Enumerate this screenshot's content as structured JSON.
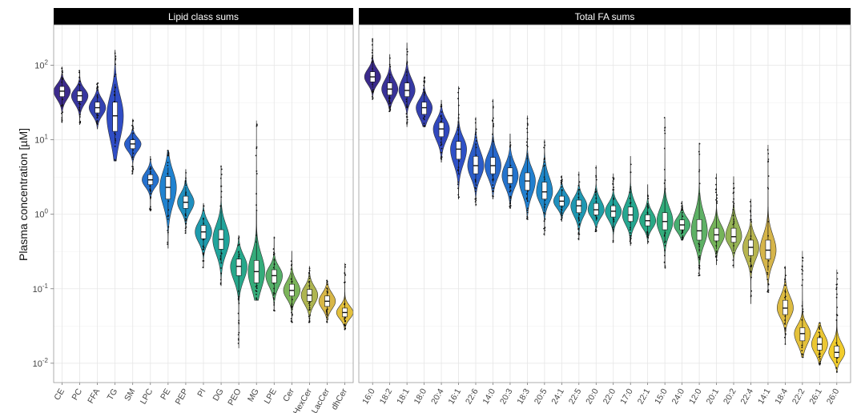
{
  "chart_data": {
    "type": "violin",
    "ylabel": "Plasma concentration [µM]",
    "yscale": "log10",
    "ylim": [
      0.0055,
      350
    ],
    "yticks": [
      0.01,
      0.1,
      1,
      10,
      100
    ],
    "ytick_labels": [
      {
        "base": "10",
        "exp": "-2"
      },
      {
        "base": "10",
        "exp": "-1"
      },
      {
        "base": "10",
        "exp": "0"
      },
      {
        "base": "10",
        "exp": "1"
      },
      {
        "base": "10",
        "exp": "2"
      }
    ],
    "grid": true,
    "legend": "none",
    "panels": [
      {
        "title": "Lipid class sums",
        "categories": [
          "CE",
          "PC",
          "FFA",
          "TG",
          "SM",
          "LPC",
          "PE",
          "PEP",
          "PI",
          "DG",
          "PEO",
          "MG",
          "LPE",
          "Cer",
          "HexCer",
          "LacCer",
          "dhCer"
        ],
        "medians": [
          45,
          39,
          27,
          21,
          8.8,
          2.9,
          2.3,
          1.45,
          0.58,
          0.46,
          0.2,
          0.17,
          0.15,
          0.095,
          0.082,
          0.068,
          0.048
        ],
        "q1": [
          38,
          33,
          23,
          13,
          7.6,
          2.5,
          1.6,
          1.2,
          0.47,
          0.34,
          0.15,
          0.12,
          0.12,
          0.08,
          0.068,
          0.058,
          0.042
        ],
        "q3": [
          52,
          45,
          32,
          32,
          10,
          3.4,
          3.2,
          1.75,
          0.71,
          0.62,
          0.25,
          0.24,
          0.18,
          0.115,
          0.098,
          0.08,
          0.055
        ],
        "min": [
          17,
          16,
          14,
          5.2,
          3.5,
          1.1,
          0.35,
          0.55,
          0.19,
          0.11,
          0.016,
          0.07,
          0.05,
          0.035,
          0.035,
          0.035,
          0.028
        ],
        "max": [
          95,
          85,
          58,
          160,
          19,
          6,
          7.2,
          4,
          1.4,
          4.5,
          0.52,
          18,
          0.5,
          0.32,
          0.2,
          0.13,
          0.22
        ]
      },
      {
        "title": "Total FA sums",
        "categories": [
          "16:0",
          "18:2",
          "18:1",
          "18:0",
          "20:4",
          "16:1",
          "22:6",
          "14:0",
          "20:3",
          "18:3",
          "20:5",
          "24:1",
          "22:5",
          "20:0",
          "22:0",
          "17:0",
          "22:1",
          "15:0",
          "24:0",
          "12:0",
          "20:1",
          "20:2",
          "22:4",
          "14:1",
          "18:4",
          "22:2",
          "26:1",
          "26:0"
        ],
        "medians": [
          70,
          48,
          46,
          27,
          14,
          7.5,
          4.5,
          4.5,
          3.3,
          2.8,
          2.0,
          1.5,
          1.3,
          1.15,
          1.1,
          0.98,
          0.82,
          0.8,
          0.72,
          0.6,
          0.53,
          0.5,
          0.36,
          0.33,
          0.055,
          0.025,
          0.018,
          0.014
        ],
        "q1": [
          60,
          40,
          38,
          22,
          11,
          5.5,
          3.5,
          3.5,
          2.6,
          2.1,
          1.6,
          1.3,
          1.05,
          0.98,
          0.92,
          0.8,
          0.7,
          0.62,
          0.62,
          0.45,
          0.44,
          0.42,
          0.28,
          0.25,
          0.045,
          0.02,
          0.015,
          0.012
        ],
        "q3": [
          82,
          58,
          58,
          32,
          17,
          9.5,
          6,
          5.8,
          4.2,
          3.6,
          2.7,
          1.75,
          1.55,
          1.4,
          1.3,
          1.25,
          0.98,
          1.05,
          0.84,
          0.85,
          0.65,
          0.65,
          0.45,
          0.45,
          0.07,
          0.03,
          0.022,
          0.017
        ],
        "min": [
          35,
          24,
          15,
          15,
          5,
          1.6,
          1.3,
          1.6,
          1.2,
          0.85,
          0.52,
          0.8,
          0.45,
          0.58,
          0.42,
          0.38,
          0.4,
          0.19,
          0.45,
          0.15,
          0.21,
          0.19,
          0.063,
          0.09,
          0.018,
          0.012,
          0.0095,
          0.0075
        ],
        "max": [
          230,
          140,
          200,
          70,
          34,
          52,
          20,
          35,
          12,
          21,
          10,
          3.3,
          3.7,
          4.5,
          3.5,
          6,
          2.5,
          20,
          1.5,
          9,
          3.5,
          3.2,
          1.6,
          8.5,
          0.2,
          0.32,
          0.035,
          0.18
        ]
      }
    ]
  }
}
